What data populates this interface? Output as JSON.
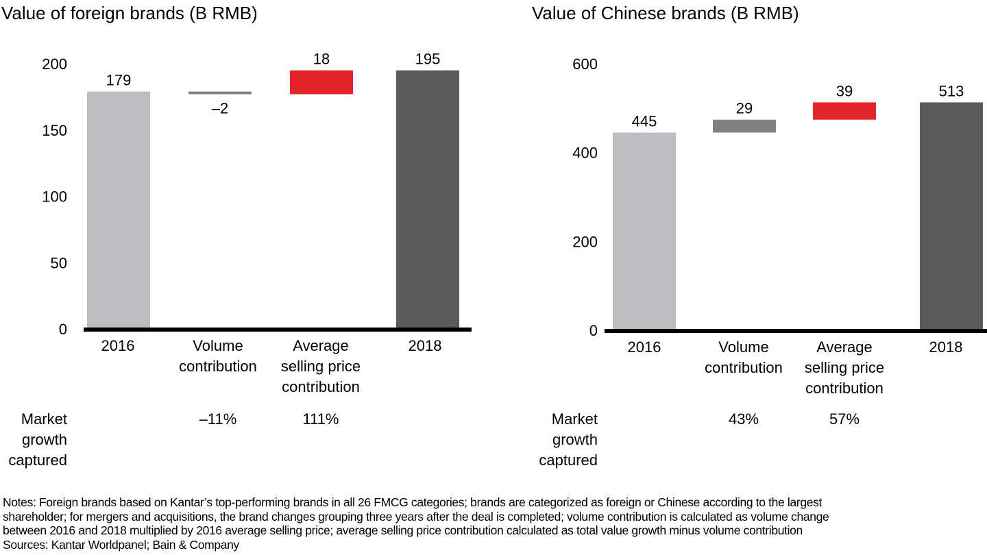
{
  "chart_data": [
    {
      "id": "foreign",
      "type": "bar",
      "subtype": "waterfall",
      "title": "Value of foreign brands (B RMB)",
      "ylim": [
        0,
        200
      ],
      "yticks": [
        0,
        50,
        100,
        150,
        200
      ],
      "categories": [
        "2016",
        "Volume contribution",
        "Average selling price contribution",
        "2018"
      ],
      "category_lines": [
        [
          "2016"
        ],
        [
          "Volume",
          "contribution"
        ],
        [
          "Average",
          "selling price",
          "contribution"
        ],
        [
          "2018"
        ]
      ],
      "bars": [
        {
          "kind": "total",
          "start": 0,
          "end": 179,
          "label": "179",
          "color": "#bcbdc0",
          "label_pos": "above"
        },
        {
          "kind": "delta",
          "start": 179,
          "end": 177,
          "label": "–2",
          "color": "#808083",
          "label_pos": "below"
        },
        {
          "kind": "delta",
          "start": 177,
          "end": 195,
          "label": "18",
          "color": "#e3262b",
          "label_pos": "above"
        },
        {
          "kind": "total",
          "start": 0,
          "end": 195,
          "label": "195",
          "color": "#5a5a5c",
          "label_pos": "above"
        }
      ],
      "growth_row_label": [
        "Market",
        "growth",
        "captured"
      ],
      "growth_captured": [
        "",
        "–11%",
        "111%",
        ""
      ]
    },
    {
      "id": "chinese",
      "type": "bar",
      "subtype": "waterfall",
      "title": "Value of Chinese brands (B RMB)",
      "ylim": [
        0,
        600
      ],
      "yticks": [
        0,
        200,
        400,
        600
      ],
      "categories": [
        "2016",
        "Volume contribution",
        "Average selling price contribution",
        "2018"
      ],
      "category_lines": [
        [
          "2016"
        ],
        [
          "Volume",
          "contribution"
        ],
        [
          "Average",
          "selling price",
          "contribution"
        ],
        [
          "2018"
        ]
      ],
      "bars": [
        {
          "kind": "total",
          "start": 0,
          "end": 445,
          "label": "445",
          "color": "#bcbdc0",
          "label_pos": "above"
        },
        {
          "kind": "delta",
          "start": 445,
          "end": 474,
          "label": "29",
          "color": "#808083",
          "label_pos": "above"
        },
        {
          "kind": "delta",
          "start": 474,
          "end": 513,
          "label": "39",
          "color": "#e3262b",
          "label_pos": "above"
        },
        {
          "kind": "total",
          "start": 0,
          "end": 513,
          "label": "513",
          "color": "#5a5a5c",
          "label_pos": "above"
        }
      ],
      "growth_row_label": [
        "Market",
        "growth",
        "captured"
      ],
      "growth_captured": [
        "",
        "43%",
        "57%",
        ""
      ]
    }
  ],
  "notes": {
    "lines": [
      "Notes: Foreign brands based on Kantar’s top-performing brands in all 26 FMCG categories; brands are categorized as foreign or Chinese according to the largest",
      "shareholder; for mergers and acquisitions, the brand changes grouping three years after the deal is completed; volume contribution is calculated as volume change",
      "between 2016 and 2018 multiplied by 2016 average selling price; average selling price contribution calculated as total value growth minus volume contribution",
      "Sources: Kantar Worldpanel; Bain & Company"
    ]
  }
}
